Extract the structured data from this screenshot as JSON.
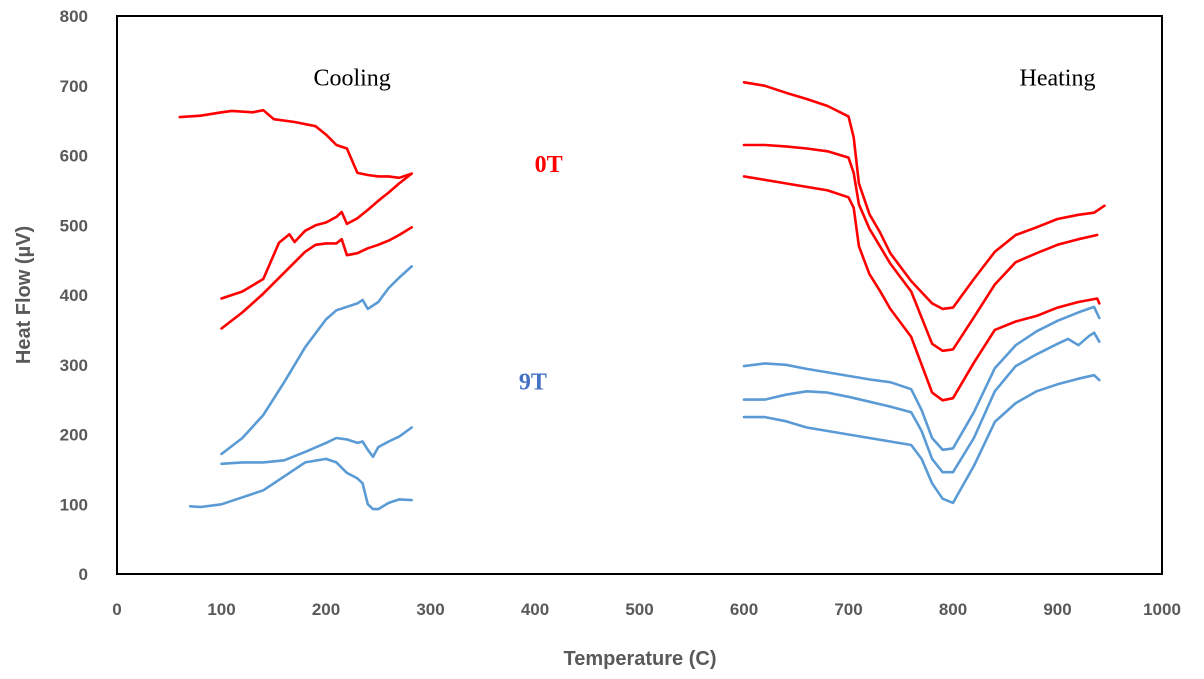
{
  "chart_data": {
    "type": "line",
    "xlabel": "Temperature (C)",
    "ylabel": "Heat Flow (µV)",
    "xlim": [
      0,
      1000
    ],
    "ylim": [
      0,
      800
    ],
    "x_ticks": [
      0,
      100,
      200,
      300,
      400,
      500,
      600,
      700,
      800,
      900,
      1000
    ],
    "y_ticks": [
      0,
      100,
      200,
      300,
      400,
      500,
      600,
      700,
      800
    ],
    "grid": false,
    "legend": "none",
    "colors": {
      "0T": "#ff0000",
      "9T": "#5b9bd5"
    },
    "annotations": [
      {
        "text": "Cooling",
        "x": 225,
        "y": 712,
        "style": "serif"
      },
      {
        "text": "Heating",
        "x": 900,
        "y": 712,
        "style": "serif"
      },
      {
        "text": "0T",
        "x": 413,
        "y": 588,
        "style": "bold",
        "color": "#ff0000"
      },
      {
        "text": "9T",
        "x": 398,
        "y": 276,
        "style": "bold",
        "color": "#4472c4"
      }
    ],
    "series": [
      {
        "group": "0T",
        "segment": "cooling",
        "x": [
          60,
          80,
          100,
          110,
          130,
          140,
          150,
          170,
          190,
          200,
          210,
          220,
          230,
          240,
          250,
          260,
          270,
          282
        ],
        "y": [
          655,
          657,
          662,
          664,
          662,
          665,
          652,
          648,
          642,
          630,
          615,
          610,
          575,
          572,
          570,
          570,
          568,
          574
        ]
      },
      {
        "group": "0T",
        "segment": "cooling",
        "x": [
          100,
          120,
          140,
          155,
          165,
          170,
          180,
          190,
          200,
          210,
          215,
          220,
          230,
          240,
          250,
          260,
          270,
          282
        ],
        "y": [
          395,
          405,
          423,
          475,
          487,
          476,
          492,
          500,
          504,
          512,
          519,
          502,
          510,
          522,
          535,
          547,
          560,
          574
        ]
      },
      {
        "group": "0T",
        "segment": "cooling",
        "x": [
          100,
          120,
          140,
          160,
          180,
          190,
          200,
          210,
          215,
          220,
          230,
          240,
          250,
          260,
          270,
          282
        ],
        "y": [
          352,
          375,
          402,
          432,
          462,
          472,
          474,
          474,
          480,
          457,
          460,
          467,
          472,
          478,
          486,
          497
        ]
      },
      {
        "group": "9T",
        "segment": "cooling",
        "x": [
          100,
          120,
          140,
          160,
          180,
          200,
          210,
          220,
          230,
          235,
          240,
          250,
          260,
          270,
          282
        ],
        "y": [
          172,
          195,
          228,
          275,
          325,
          365,
          378,
          383,
          388,
          393,
          380,
          390,
          410,
          425,
          441
        ]
      },
      {
        "group": "9T",
        "segment": "cooling",
        "x": [
          100,
          120,
          140,
          160,
          180,
          200,
          210,
          220,
          230,
          235,
          240,
          245,
          250,
          260,
          270,
          282
        ],
        "y": [
          158,
          160,
          160,
          163,
          175,
          188,
          195,
          193,
          188,
          190,
          178,
          168,
          182,
          190,
          197,
          210
        ]
      },
      {
        "group": "9T",
        "segment": "cooling",
        "x": [
          70,
          80,
          100,
          120,
          140,
          160,
          180,
          200,
          210,
          220,
          230,
          235,
          240,
          245,
          250,
          260,
          270,
          282
        ],
        "y": [
          97,
          96,
          100,
          110,
          120,
          140,
          160,
          165,
          160,
          145,
          137,
          130,
          100,
          93,
          93,
          102,
          107,
          106
        ]
      },
      {
        "group": "0T",
        "segment": "heating",
        "x": [
          600,
          620,
          640,
          660,
          680,
          700,
          705,
          710,
          720,
          730,
          740,
          760,
          780,
          790,
          800,
          820,
          840,
          860,
          880,
          900,
          920,
          935,
          945
        ],
        "y": [
          705,
          700,
          690,
          681,
          671,
          656,
          626,
          560,
          516,
          490,
          460,
          420,
          388,
          380,
          382,
          423,
          462,
          486,
          497,
          509,
          515,
          518,
          528
        ]
      },
      {
        "group": "0T",
        "segment": "heating",
        "x": [
          600,
          620,
          640,
          660,
          680,
          700,
          705,
          710,
          720,
          730,
          740,
          760,
          780,
          790,
          800,
          820,
          840,
          860,
          880,
          900,
          920,
          938
        ],
        "y": [
          615,
          615,
          613,
          610,
          606,
          597,
          575,
          530,
          495,
          470,
          445,
          405,
          330,
          320,
          322,
          368,
          415,
          447,
          460,
          472,
          480,
          486
        ]
      },
      {
        "group": "0T",
        "segment": "heating",
        "x": [
          600,
          620,
          640,
          660,
          680,
          700,
          705,
          710,
          720,
          730,
          740,
          760,
          780,
          790,
          800,
          820,
          840,
          860,
          880,
          900,
          920,
          938,
          940
        ],
        "y": [
          570,
          565,
          560,
          555,
          550,
          540,
          525,
          470,
          430,
          406,
          380,
          340,
          260,
          249,
          252,
          303,
          350,
          362,
          370,
          382,
          390,
          395,
          388
        ]
      },
      {
        "group": "9T",
        "segment": "heating",
        "x": [
          600,
          620,
          640,
          660,
          680,
          700,
          720,
          740,
          760,
          770,
          780,
          790,
          800,
          820,
          840,
          860,
          880,
          900,
          920,
          935,
          940
        ],
        "y": [
          298,
          302,
          300,
          294,
          289,
          284,
          279,
          275,
          265,
          235,
          195,
          178,
          180,
          232,
          295,
          328,
          348,
          363,
          375,
          383,
          367
        ]
      },
      {
        "group": "9T",
        "segment": "heating",
        "x": [
          600,
          620,
          640,
          660,
          680,
          700,
          720,
          740,
          760,
          770,
          780,
          790,
          800,
          820,
          840,
          860,
          880,
          900,
          910,
          920,
          930,
          935,
          940
        ],
        "y": [
          250,
          250,
          257,
          262,
          260,
          254,
          247,
          240,
          232,
          205,
          165,
          146,
          146,
          195,
          262,
          298,
          315,
          330,
          337,
          328,
          341,
          346,
          333
        ]
      },
      {
        "group": "9T",
        "segment": "heating",
        "x": [
          600,
          620,
          640,
          660,
          680,
          700,
          720,
          740,
          760,
          770,
          780,
          790,
          800,
          820,
          840,
          860,
          880,
          900,
          920,
          935,
          940
        ],
        "y": [
          225,
          225,
          219,
          210,
          205,
          200,
          195,
          190,
          185,
          165,
          130,
          108,
          102,
          155,
          218,
          245,
          262,
          272,
          280,
          285,
          278
        ]
      }
    ]
  }
}
